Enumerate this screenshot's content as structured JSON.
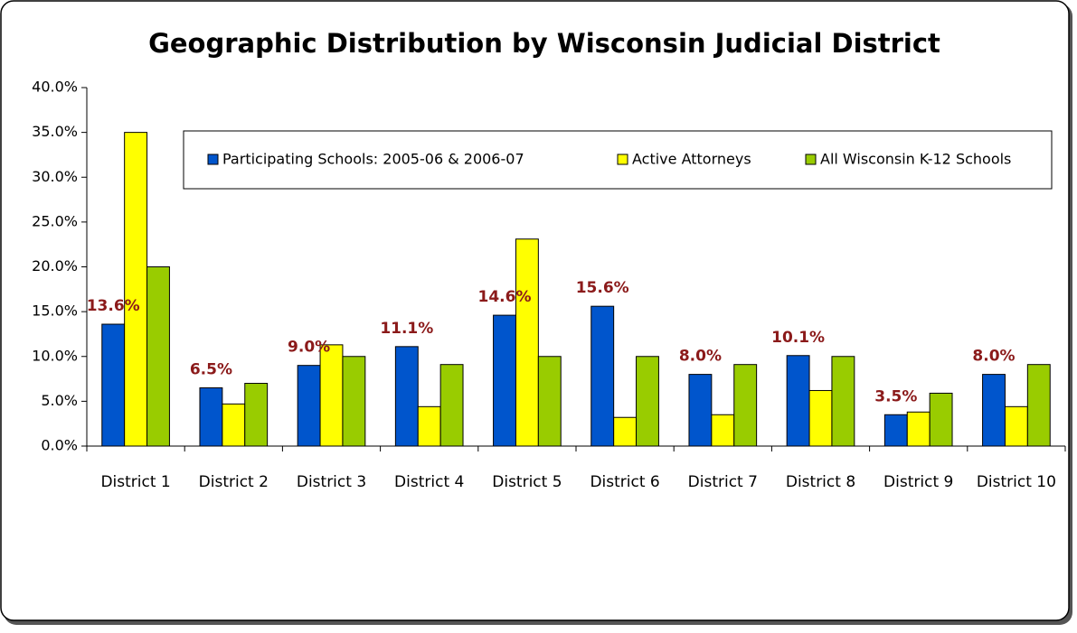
{
  "chart_data": {
    "type": "bar",
    "title": "Geographic Distribution by Wisconsin Judicial District",
    "categories": [
      "District 1",
      "District 2",
      "District 3",
      "District 4",
      "District 5",
      "District 6",
      "District 7",
      "District 8",
      "District 9",
      "District 10"
    ],
    "series": [
      {
        "name": "Participating Schools: 2005-06 & 2006-07",
        "color": "#0055cc",
        "values": [
          13.6,
          6.5,
          9.0,
          11.1,
          14.6,
          15.6,
          8.0,
          10.1,
          3.5,
          8.0
        ],
        "value_labels": [
          "13.6%",
          "6.5%",
          "9.0%",
          "11.1%",
          "14.6%",
          "15.6%",
          "8.0%",
          "10.1%",
          "3.5%",
          "8.0%"
        ],
        "label_color": "#8b1a1a"
      },
      {
        "name": "Active Attorneys",
        "color": "#ffff00",
        "values": [
          35.0,
          4.7,
          11.3,
          4.4,
          23.1,
          3.2,
          3.5,
          6.2,
          3.8,
          4.4
        ]
      },
      {
        "name": "All Wisconsin K-12 Schools",
        "color": "#99cc00",
        "values": [
          20.0,
          7.0,
          10.0,
          9.1,
          10.0,
          10.0,
          9.1,
          10.0,
          5.9,
          9.1
        ]
      }
    ],
    "ylim": [
      0,
      40
    ],
    "yticks": [
      {
        "value": 0,
        "label": "0.0%"
      },
      {
        "value": 5,
        "label": "5.0%"
      },
      {
        "value": 10,
        "label": "10.0%"
      },
      {
        "value": 15,
        "label": "15.0%"
      },
      {
        "value": 20,
        "label": "20.0%"
      },
      {
        "value": 25,
        "label": "25.0%"
      },
      {
        "value": 30,
        "label": "30.0%"
      },
      {
        "value": 35,
        "label": "35.0%"
      },
      {
        "value": 40,
        "label": "40.0%"
      }
    ],
    "legend": "top",
    "grid": false
  }
}
